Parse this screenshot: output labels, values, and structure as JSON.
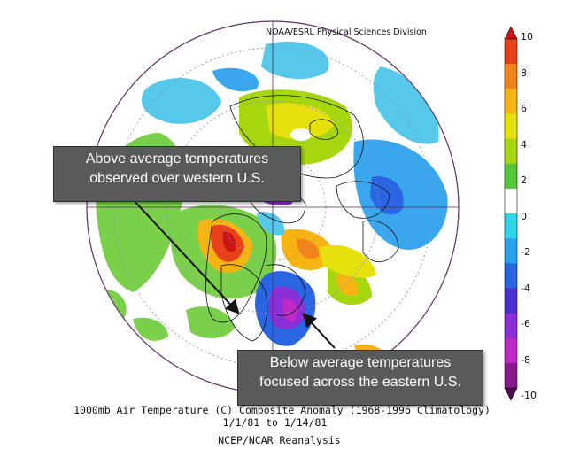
{
  "header": {
    "credit": "NOAA/ESRL Physical Sciences Division"
  },
  "callouts": {
    "above": {
      "line1": "Above average temperatures",
      "line2": "observed over western U.S."
    },
    "below": {
      "line1": "Below average temperatures",
      "line2": "focused across the eastern U.S."
    }
  },
  "caption": {
    "line1": "1000mb Air Temperature (C) Composite Anomaly (1968-1996 Climatology)",
    "line2": "1/1/81  to 1/14/81",
    "line3": "NCEP/NCAR Reanalysis"
  },
  "colorbar": {
    "labels": [
      "10",
      "8",
      "6",
      "4",
      "2",
      "0",
      "-2",
      "-4",
      "-6",
      "-8",
      "-10"
    ],
    "colors": [
      "#c81414",
      "#e8401a",
      "#f2821a",
      "#f6b414",
      "#e6e00c",
      "#a6d60e",
      "#55c43a",
      "#ffffff",
      "#2ad6e8",
      "#2aa0f0",
      "#2a66e2",
      "#4a2ed0",
      "#8a2ed8",
      "#c028c8",
      "#8a1a8a",
      "#520a52"
    ]
  }
}
